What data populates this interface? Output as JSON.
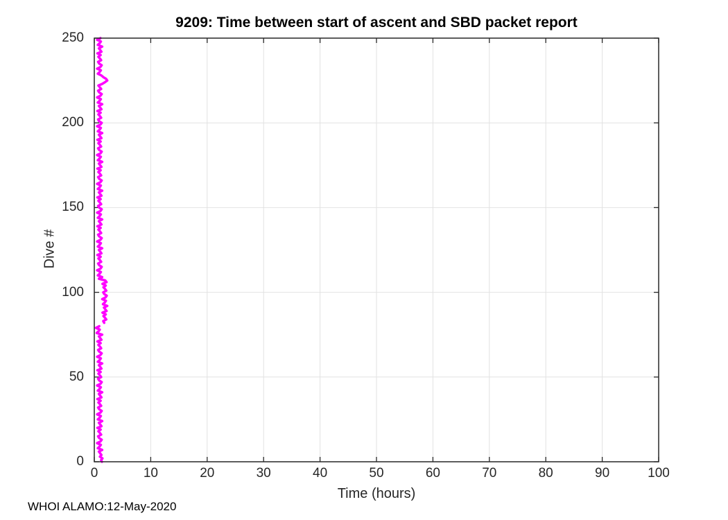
{
  "colors": {
    "background": "#FFFFFF",
    "axis": "#262626",
    "grid": "#E2E2E2",
    "title": "#000000",
    "line": "#FF00FF"
  },
  "footer": "WHOI ALAMO:12-May-2020",
  "chart_data": {
    "type": "line",
    "title": "9209: Time between start of ascent and SBD packet report",
    "xlabel": "Time (hours)",
    "ylabel": "Dive #",
    "xlim": [
      0,
      100
    ],
    "ylim": [
      0,
      250
    ],
    "x_ticks": [
      0,
      10,
      20,
      30,
      40,
      50,
      60,
      70,
      80,
      90,
      100
    ],
    "y_ticks": [
      0,
      50,
      100,
      150,
      200,
      250
    ],
    "grid": true,
    "legend": "none",
    "line_color": "#FF00FF",
    "line_width": 3.5,
    "series": [
      {
        "name": "time between start of ascent and SBD packet report (hours)",
        "dive_start": 0,
        "hours_by_dive": [
          1.35,
          1.2,
          1.45,
          1.0,
          1.27,
          1.04,
          0.81,
          1.4,
          0.63,
          0.95,
          1.17,
          0.5,
          1.09,
          1.31,
          0.86,
          0.68,
          1.22,
          0.99,
          0.72,
          1.13,
          0.55,
          1.27,
          1.04,
          0.81,
          1.4,
          0.63,
          0.95,
          1.17,
          0.5,
          1.09,
          1.31,
          0.86,
          0.68,
          1.22,
          0.99,
          0.72,
          1.13,
          0.55,
          1.27,
          1.04,
          0.81,
          1.4,
          0.63,
          0.95,
          1.17,
          0.5,
          1.09,
          1.31,
          0.86,
          0.68,
          1.22,
          0.99,
          0.72,
          1.13,
          0.55,
          1.27,
          1.04,
          0.81,
          1.4,
          0.63,
          0.95,
          1.17,
          0.5,
          1.09,
          1.31,
          0.86,
          0.68,
          1.22,
          0.99,
          0.72,
          1.13,
          0.55,
          1.27,
          1.04,
          0.81,
          1.4,
          0.43,
          0.75,
          0.97,
          0.3,
          0.89,
          null,
          1.76,
          1.58,
          2.12,
          1.89,
          1.62,
          2.03,
          1.45,
          2.17,
          1.94,
          1.71,
          2.3,
          1.53,
          1.85,
          2.07,
          1.4,
          1.99,
          2.21,
          1.76,
          1.58,
          2.12,
          1.89,
          1.62,
          2.03,
          1.45,
          2.17,
          1.94,
          0.81,
          1.4,
          0.63,
          0.95,
          1.17,
          0.5,
          1.09,
          1.31,
          0.86,
          0.68,
          1.22,
          0.99,
          0.72,
          1.13,
          0.55,
          1.27,
          1.04,
          0.81,
          1.4,
          0.63,
          0.95,
          1.17,
          0.5,
          1.09,
          1.31,
          0.86,
          0.68,
          1.22,
          0.99,
          0.72,
          1.13,
          0.55,
          1.27,
          1.04,
          0.81,
          1.4,
          0.63,
          0.95,
          1.17,
          0.5,
          1.09,
          1.31,
          0.86,
          0.68,
          1.22,
          0.99,
          0.72,
          1.13,
          0.55,
          1.27,
          1.04,
          0.81,
          1.4,
          0.63,
          0.95,
          1.17,
          0.5,
          1.09,
          1.31,
          0.86,
          0.68,
          1.22,
          0.99,
          0.72,
          1.13,
          0.55,
          1.27,
          1.04,
          0.81,
          1.4,
          0.63,
          0.95,
          1.17,
          0.5,
          1.09,
          1.31,
          0.86,
          0.68,
          1.22,
          0.99,
          0.72,
          1.13,
          0.55,
          1.27,
          1.04,
          0.81,
          1.4,
          0.63,
          0.95,
          1.17,
          0.5,
          1.09,
          1.31,
          0.86,
          0.68,
          1.22,
          0.99,
          0.72,
          1.13,
          0.55,
          1.27,
          1.04,
          0.81,
          1.4,
          0.63,
          0.95,
          1.17,
          0.5,
          1.09,
          1.31,
          0.86,
          0.68,
          1.22,
          0.99,
          0.72,
          1.4,
          1.9,
          2.3,
          2.1,
          1.6,
          1.25,
          0.63,
          0.95,
          1.17,
          0.5,
          1.09,
          1.31,
          0.86,
          0.68,
          1.22,
          0.99,
          0.72,
          1.13,
          0.55,
          1.27,
          1.04,
          0.81,
          1.4,
          0.63,
          0.95,
          1.17,
          0.5,
          1.09
        ]
      }
    ]
  }
}
